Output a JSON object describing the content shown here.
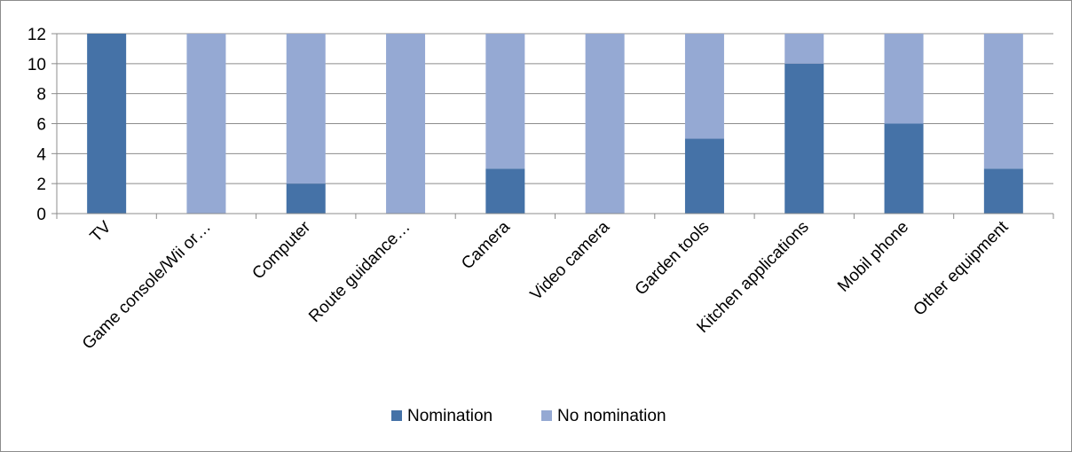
{
  "chart_data": {
    "type": "bar",
    "stacked": true,
    "categories": [
      "TV",
      "Game console/Wii or…",
      "Computer",
      "Route guidance…",
      "Camera",
      "Video camera",
      "Garden tools",
      "Kitchen applications",
      "Mobil phone",
      "Other equipment"
    ],
    "series": [
      {
        "name": "Nomination",
        "color": "#4572A7",
        "values": [
          12,
          0,
          2,
          0,
          3,
          0,
          5,
          10,
          6,
          3
        ]
      },
      {
        "name": "No nomination",
        "color": "#95A9D3",
        "values": [
          0,
          12,
          10,
          12,
          9,
          12,
          7,
          2,
          6,
          9
        ]
      }
    ],
    "title": "",
    "xlabel": "",
    "ylabel": "",
    "ylim": [
      0,
      12
    ],
    "yticks": [
      "0",
      "2",
      "4",
      "6",
      "8",
      "10",
      "12"
    ],
    "grid": true,
    "legend_position": "bottom"
  }
}
